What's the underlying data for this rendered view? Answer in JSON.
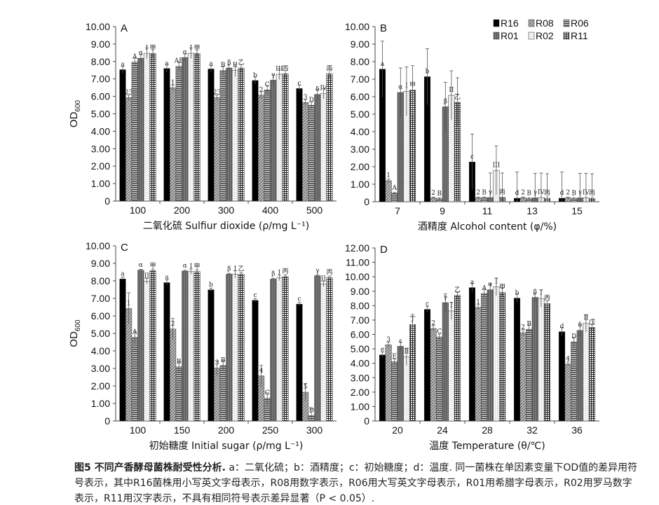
{
  "chart_data": [
    {
      "type": "bar",
      "panel": "A",
      "xlabel": "二氧化硫 Sulfiur dioxide (ρ/mg L⁻¹)",
      "ylabel": "OD",
      "ylabel_sub": "600",
      "ylim": [
        0,
        10
      ],
      "yticks": [
        "0",
        "1.00",
        "2.00",
        "3.00",
        "4.00",
        "5.00",
        "6.00",
        "7.00",
        "8.00",
        "9.00",
        "10.00"
      ],
      "categories": [
        "100",
        "200",
        "300",
        "400",
        "500"
      ],
      "series": [
        {
          "name": "R16",
          "values": [
            7.53,
            7.6,
            7.57,
            6.91,
            6.45
          ],
          "error": [
            0.2,
            0.2,
            0.2,
            0.2,
            0.2
          ],
          "labels": [
            "a",
            "a",
            "a",
            "b",
            "c"
          ]
        },
        {
          "name": "R08",
          "values": [
            5.93,
            6.49,
            5.93,
            6.07,
            5.65
          ],
          "error": [
            0.15,
            0.15,
            0.15,
            0.2,
            0.15
          ],
          "labels": [
            "23",
            "1",
            "23",
            "2",
            "3"
          ]
        },
        {
          "name": "R06",
          "values": [
            7.97,
            7.73,
            7.49,
            6.37,
            5.49
          ],
          "error": [
            0.25,
            0.25,
            0.25,
            0.25,
            0.2
          ],
          "labels": [
            "A",
            "AB",
            "B",
            "C",
            "D"
          ]
        },
        {
          "name": "R01",
          "values": [
            8.19,
            8.23,
            7.63,
            6.93,
            6.11
          ],
          "error": [
            0.2,
            0.2,
            0.2,
            0.3,
            0.3
          ],
          "labels": [
            "α",
            "α",
            "β",
            "γ",
            "δ"
          ]
        },
        {
          "name": "R02",
          "values": [
            8.47,
            8.47,
            7.49,
            7.27,
            6.16
          ],
          "error": [
            0.3,
            0.3,
            0.35,
            0.3,
            0.3
          ],
          "labels": [
            "I",
            "I",
            "II",
            "III",
            "IV"
          ]
        },
        {
          "name": "R11",
          "values": [
            8.47,
            8.47,
            7.63,
            7.29,
            7.29
          ],
          "error": [
            0.2,
            0.2,
            0.2,
            0.2,
            0.25
          ],
          "labels": [
            "甲",
            "甲",
            "乙",
            "丙",
            "丙"
          ]
        }
      ]
    },
    {
      "type": "bar",
      "panel": "B",
      "xlabel": "酒精度 Alcohol content (φ/%)",
      "ylabel": "",
      "ylabel_sub": "",
      "ylim": [
        0,
        10
      ],
      "yticks": [
        "0",
        "1.00",
        "2.00",
        "3.00",
        "4.00",
        "5.00",
        "6.00",
        "7.00",
        "8.00",
        "9.00",
        "10.00"
      ],
      "categories": [
        "7",
        "9",
        "11",
        "13",
        "15"
      ],
      "legend": "top-right",
      "series": [
        {
          "name": "R16",
          "values": [
            7.57,
            7.14,
            2.27,
            0.2,
            0.2
          ],
          "error": [
            1.6,
            1.6,
            1.6,
            1.5,
            1.5
          ],
          "labels": [
            "a",
            "b",
            "c",
            "d",
            "d"
          ]
        },
        {
          "name": "R08",
          "values": [
            1.2,
            0.21,
            0.22,
            0.22,
            0.22
          ],
          "error": [
            0.1,
            0.05,
            0.05,
            0.05,
            0.05
          ],
          "labels": [
            "1",
            "2",
            "2",
            "2",
            "2"
          ]
        },
        {
          "name": "R06",
          "values": [
            0.48,
            0.17,
            0.22,
            0.18,
            0.18
          ],
          "error": [
            0.05,
            0.05,
            0.05,
            0.05,
            0.05
          ],
          "labels": [
            "A",
            "B",
            "B",
            "B",
            "B"
          ]
        },
        {
          "name": "R01",
          "values": [
            6.24,
            5.42,
            0.24,
            0.22,
            0.22
          ],
          "error": [
            1.4,
            1.4,
            1.4,
            1.4,
            1.4
          ],
          "labels": [
            "α",
            "β",
            "γ",
            "γ",
            "γ"
          ]
        },
        {
          "name": "R02",
          "values": [
            6.3,
            6.08,
            1.79,
            0.24,
            0.22
          ],
          "error": [
            1.4,
            1.4,
            1.4,
            1.4,
            1.4
          ],
          "labels": [
            "I",
            "II",
            "III",
            "IV",
            "IV"
          ]
        },
        {
          "name": "R11",
          "values": [
            6.37,
            5.68,
            0.24,
            0.2,
            0.2
          ],
          "error": [
            1.4,
            1.4,
            1.4,
            1.4,
            1.4
          ],
          "labels": [
            "甲",
            "乙",
            "丙",
            "丙",
            "丙"
          ]
        }
      ]
    },
    {
      "type": "bar",
      "panel": "C",
      "xlabel": "初始糖度 Initial sugar (ρ/mg L⁻¹)",
      "ylabel": "OD",
      "ylabel_sub": "600",
      "ylim": [
        0,
        10
      ],
      "yticks": [
        "0",
        "1.00",
        "2.00",
        "3.00",
        "4.00",
        "5.00",
        "6.00",
        "7.00",
        "8.00",
        "9.00",
        "10.00"
      ],
      "categories": [
        "100",
        "150",
        "200",
        "250",
        "300"
      ],
      "series": [
        {
          "name": "R16",
          "values": [
            8.11,
            7.9,
            7.49,
            6.89,
            6.67
          ],
          "error": [
            0.1,
            0.15,
            0.1,
            0.1,
            0.1
          ],
          "labels": [
            "a",
            "a",
            "b",
            "c",
            "c"
          ]
        },
        {
          "name": "R08",
          "values": [
            6.42,
            5.25,
            3.02,
            2.57,
            1.64
          ],
          "error": [
            0.9,
            0.6,
            0.4,
            0.6,
            0.5
          ],
          "labels": [
            "1",
            "2",
            "3",
            "4",
            "5"
          ]
        },
        {
          "name": "R06",
          "values": [
            4.79,
            3.09,
            3.16,
            1.3,
            0.31
          ],
          "error": [
            0.3,
            0.3,
            0.3,
            0.3,
            0.4
          ],
          "labels": [
            "A",
            "B",
            "B",
            "C",
            "D"
          ]
        },
        {
          "name": "R01",
          "values": [
            8.61,
            8.56,
            8.38,
            8.1,
            8.29
          ],
          "error": [
            0.05,
            0.05,
            0.05,
            0.05,
            0.05
          ],
          "labels": [
            "α",
            "α",
            "β",
            "β",
            "γ"
          ]
        },
        {
          "name": "R02",
          "values": [
            7.99,
            8.53,
            8.38,
            8.17,
            7.83
          ],
          "error": [
            0.15,
            0.15,
            0.2,
            0.15,
            0.15
          ],
          "labels": [
            "II",
            "I",
            "I",
            "I",
            "II"
          ]
        },
        {
          "name": "R11",
          "values": [
            8.57,
            8.53,
            8.38,
            8.24,
            8.18
          ],
          "error": [
            0.1,
            0.1,
            0.1,
            0.1,
            0.1
          ],
          "labels": [
            "甲",
            "甲",
            "乙",
            "丙",
            "丙"
          ]
        }
      ]
    },
    {
      "type": "bar",
      "panel": "D",
      "xlabel": "温度 Temperature (θ/℃)",
      "ylabel": "",
      "ylabel_sub": "",
      "ylim": [
        0,
        12
      ],
      "yticks": [
        "0",
        "1.00",
        "2.00",
        "3.00",
        "4.00",
        "5.00",
        "6.00",
        "7.00",
        "8.00",
        "9.00",
        "10.00",
        "11.00",
        "12.00"
      ],
      "categories": [
        "20",
        "24",
        "28",
        "32",
        "36"
      ],
      "series": [
        {
          "name": "R16",
          "values": [
            4.58,
            7.74,
            9.25,
            8.52,
            6.19
          ],
          "error": [
            0.2,
            0.2,
            0.3,
            0.3,
            0.3
          ],
          "labels": [
            "e",
            "c",
            "a",
            "b",
            "d"
          ]
        },
        {
          "name": "R08",
          "values": [
            5.28,
            6.41,
            7.87,
            6.12,
            3.94
          ],
          "error": [
            0.2,
            0.2,
            0.2,
            0.2,
            0.15
          ],
          "labels": [
            "3",
            "2",
            "1",
            "2",
            "4"
          ]
        },
        {
          "name": "R06",
          "values": [
            4.1,
            5.83,
            8.84,
            6.36,
            5.49
          ],
          "error": [
            0.2,
            0.2,
            0.3,
            0.3,
            0.3
          ],
          "labels": [
            "E",
            "C",
            "A",
            "B",
            "D"
          ]
        },
        {
          "name": "R01",
          "values": [
            5.18,
            8.21,
            9.1,
            8.57,
            6.28
          ],
          "error": [
            0.3,
            0.6,
            0.4,
            0.3,
            0.4
          ],
          "labels": [
            "ε",
            "γ",
            "α",
            "β",
            "δ"
          ]
        },
        {
          "name": "R02",
          "values": [
            4.45,
            7.63,
            9.31,
            8.5,
            6.77
          ],
          "error": [
            0.6,
            0.6,
            0.6,
            0.6,
            0.6
          ],
          "labels": [
            "II",
            "I",
            "I",
            "I",
            "II"
          ]
        },
        {
          "name": "R11",
          "values": [
            6.69,
            8.71,
            8.91,
            8.15,
            6.48
          ],
          "error": [
            0.7,
            0.2,
            0.3,
            0.2,
            0.2
          ],
          "labels": [
            "丁",
            "乙",
            "甲",
            "丙",
            "戊"
          ]
        }
      ]
    }
  ],
  "series_styles": {
    "R16": "#000000",
    "R08": "diagonal-hatch",
    "R06": "horizontal-stripes",
    "R01": "#6e6e6e",
    "R02": "dotted-white",
    "R11": "checkered"
  },
  "caption": {
    "title": "图5  不同产香酵母菌株耐受性分析.",
    "line1": " a：二氧化硫；b：酒精度；c：初始糖度；d：温度. 同一菌株在单因素变量下OD值的差异用符",
    "line2": "号表示，其中R16菌株用小写英文字母表示，R08用数字表示，R06用大写英文字母表示，R01用希腊字母表示，R02用罗马数字",
    "line3": "表示，R11用汉字表示，不具有相同符号表示差异显著（P < 0.05）."
  }
}
